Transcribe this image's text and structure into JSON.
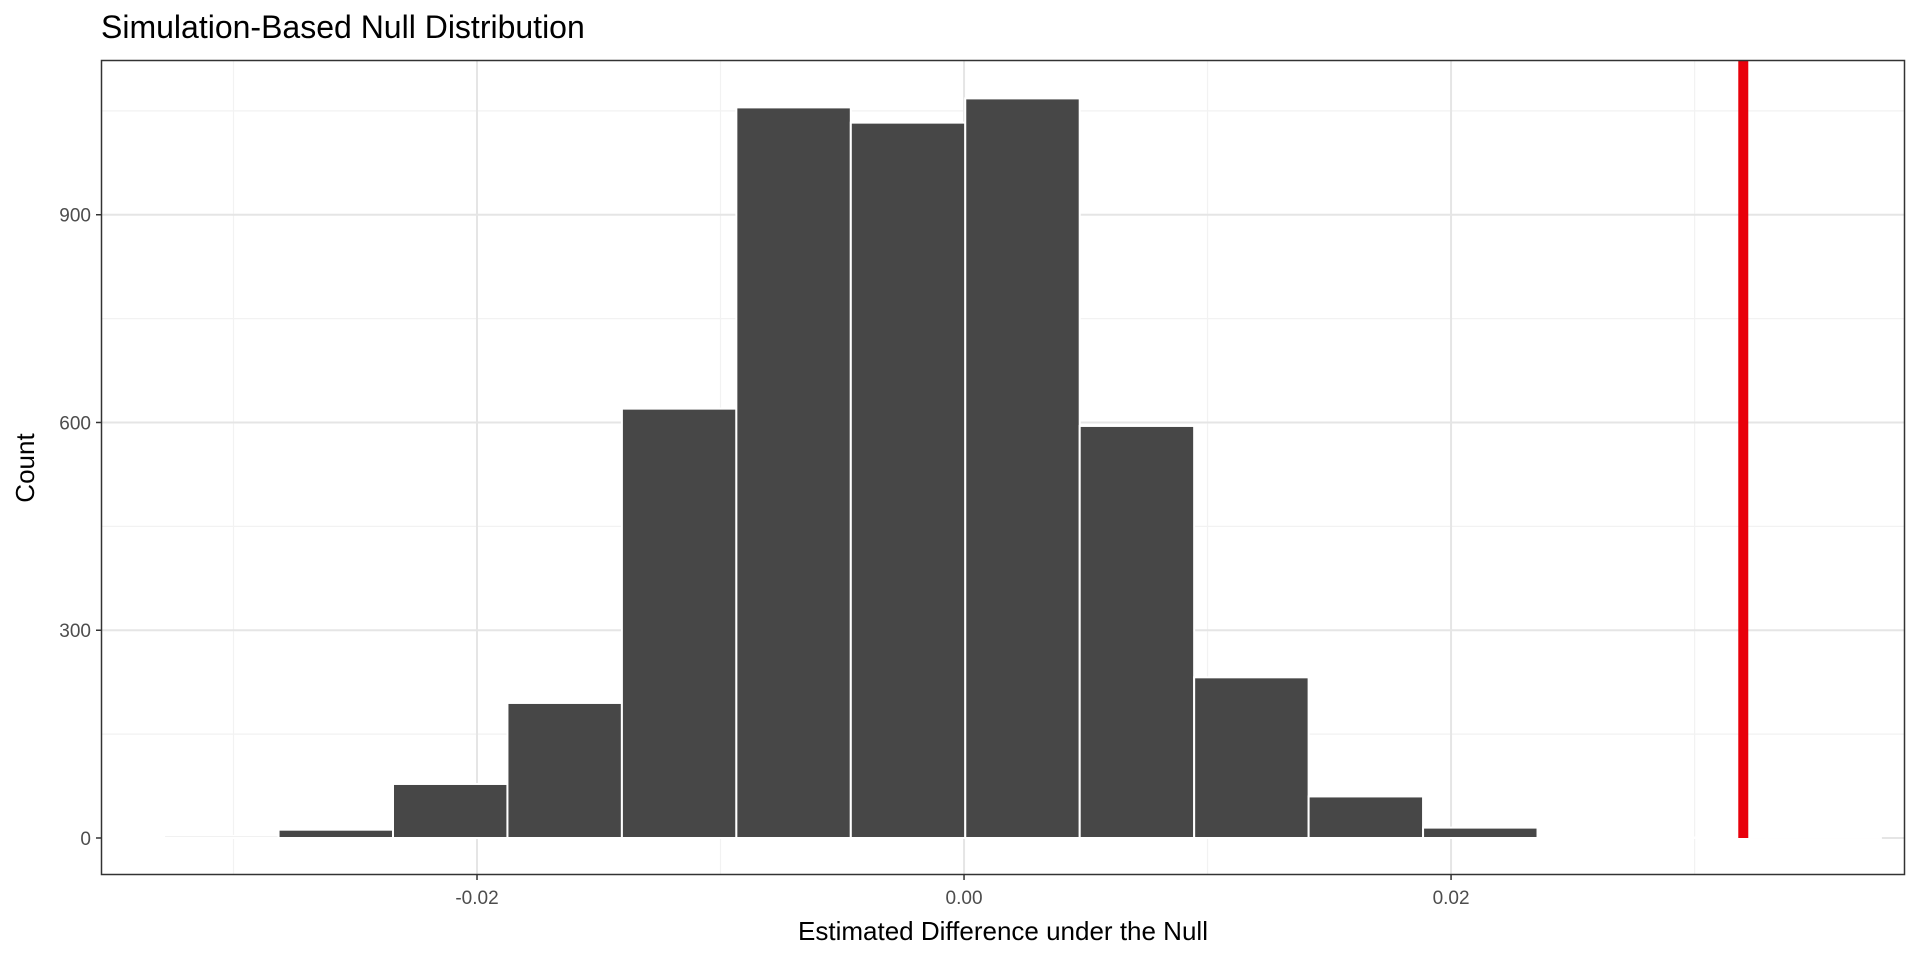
{
  "chart_data": {
    "type": "bar",
    "title": "Simulation-Based Null Distribution",
    "xlabel": "Estimated Difference under the Null",
    "ylabel": "Count",
    "xlim": [
      -0.0354,
      0.0386
    ],
    "ylim": [
      -52,
      1122
    ],
    "x_ticks": [
      -0.02,
      0.0,
      0.02
    ],
    "x_tick_labels": [
      "-0.02",
      "0.00",
      "0.02"
    ],
    "y_ticks": [
      0,
      300,
      600,
      900
    ],
    "y_tick_labels": [
      "0",
      "300",
      "600",
      "900"
    ],
    "grid": true,
    "bin_width": 0.0047,
    "bins": [
      {
        "center": -0.0352,
        "count": 0
      },
      {
        "center": -0.0305,
        "count": 3
      },
      {
        "center": -0.0258,
        "count": 12
      },
      {
        "center": -0.0211,
        "count": 78
      },
      {
        "center": -0.0164,
        "count": 195
      },
      {
        "center": -0.0117,
        "count": 620
      },
      {
        "center": -0.007,
        "count": 1055
      },
      {
        "center": -0.0023,
        "count": 1033
      },
      {
        "center": 0.0024,
        "count": 1068
      },
      {
        "center": 0.0071,
        "count": 595
      },
      {
        "center": 0.0118,
        "count": 232
      },
      {
        "center": 0.0165,
        "count": 60
      },
      {
        "center": 0.0212,
        "count": 15
      },
      {
        "center": 0.0259,
        "count": 0
      },
      {
        "center": 0.0306,
        "count": 0
      },
      {
        "center": 0.0353,
        "count": 0
      }
    ],
    "observed_line": {
      "x": 0.032,
      "color": "#e8000b"
    },
    "colors": {
      "bar_fill": "#474747",
      "bar_outline": "#ffffff",
      "grid_major": "#e5e5e5",
      "grid_minor": "#f2f2f2",
      "panel_border": "#333333",
      "shade_region": "#ffc7c7"
    }
  }
}
